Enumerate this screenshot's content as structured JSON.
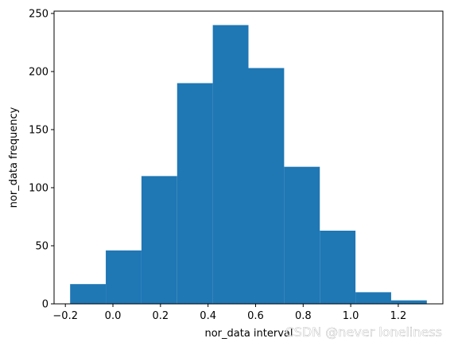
{
  "chart_data": {
    "type": "bar",
    "bins": [
      {
        "start": -0.18,
        "end": -0.03,
        "count": 17
      },
      {
        "start": -0.03,
        "end": 0.12,
        "count": 46
      },
      {
        "start": 0.12,
        "end": 0.27,
        "count": 110
      },
      {
        "start": 0.27,
        "end": 0.42,
        "count": 190
      },
      {
        "start": 0.42,
        "end": 0.57,
        "count": 240
      },
      {
        "start": 0.57,
        "end": 0.72,
        "count": 203
      },
      {
        "start": 0.72,
        "end": 0.87,
        "count": 118
      },
      {
        "start": 0.87,
        "end": 1.02,
        "count": 63
      },
      {
        "start": 1.02,
        "end": 1.17,
        "count": 10
      },
      {
        "start": 1.17,
        "end": 1.32,
        "count": 3
      }
    ],
    "xlim": [
      -0.2475,
      1.3875
    ],
    "ylim": [
      0,
      252
    ],
    "x_ticks": [
      -0.2,
      0.0,
      0.2,
      0.4,
      0.6,
      0.8,
      1.0,
      1.2
    ],
    "x_tick_labels": [
      "−0.2",
      "0.0",
      "0.2",
      "0.4",
      "0.6",
      "0.8",
      "1.0",
      "1.2"
    ],
    "y_ticks": [
      0,
      50,
      100,
      150,
      200,
      250
    ],
    "y_tick_labels": [
      "0",
      "50",
      "100",
      "150",
      "200",
      "250"
    ],
    "xlabel": "nor_data interval",
    "ylabel": "nor_data frequency",
    "bar_color": "#1f77b4",
    "grid": false,
    "legend": "none"
  },
  "watermark": "CSDN @never  loneliness"
}
